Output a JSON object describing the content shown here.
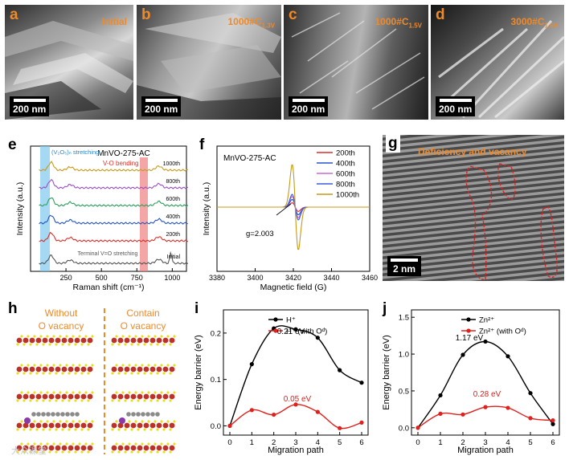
{
  "sem_panels": [
    {
      "letter": "a",
      "condition": "Initial",
      "scale_bar": "200 nm"
    },
    {
      "letter": "b",
      "condition": "1000#C",
      "condition_sub": "1.3V",
      "scale_bar": "200 nm"
    },
    {
      "letter": "c",
      "condition": "1000#C",
      "condition_sub": "1.5V",
      "scale_bar": "200 nm"
    },
    {
      "letter": "d",
      "condition": "3000#C",
      "condition_sub": "1.6V",
      "scale_bar": "200 nm"
    }
  ],
  "panel_e": {
    "letter": "e",
    "title": "MnVO-275-AC",
    "xlabel": "Raman shift (cm⁻¹)",
    "ylabel": "Intensity (a.u.)",
    "band1_label": "(V₂O₅)ₙ stretching",
    "band2_label": "V-O bending",
    "bottom_label": "Terminal V=O stretching",
    "xticks": [
      "250",
      "500",
      "750",
      "1000"
    ],
    "color_band1": "#7ec8ee",
    "color_band2": "#f08080"
  },
  "panel_f": {
    "letter": "f",
    "title": "MnVO-275-AC",
    "xlabel": "Magnetic field (G)",
    "ylabel": "Intensity (a.u.)",
    "annotation": "g=2.003",
    "xticks": [
      "3380",
      "3400",
      "3420",
      "3440",
      "3460"
    ]
  },
  "panel_g": {
    "letter": "g",
    "title": "Deficiency and vacancy",
    "scale_bar": "2 nm"
  },
  "panel_h": {
    "letter": "h",
    "left_title": "Without O vacancy",
    "right_title": "Contain O vacancy",
    "left_line1": "Without",
    "left_line2": "O vacancy",
    "right_line1": "Contain",
    "right_line2": "O vacancy"
  },
  "chart_data": [
    {
      "type": "line",
      "panel": "e",
      "title": "MnVO-275-AC",
      "xlabel": "Raman shift (cm⁻¹)",
      "ylabel": "Intensity (a.u.)",
      "xlim": [
        0,
        1100
      ],
      "series": [
        {
          "name": "Initial",
          "color": "#555555"
        },
        {
          "name": "200th",
          "color": "#d9302a"
        },
        {
          "name": "400th",
          "color": "#2553c8"
        },
        {
          "name": "600th",
          "color": "#2aa05a"
        },
        {
          "name": "800th",
          "color": "#9b4fc8"
        },
        {
          "name": "1000th",
          "color": "#c79a1a"
        }
      ],
      "annotations": [
        "(V2O5)n stretching",
        "V-O bending",
        "Terminal V=O stretching"
      ]
    },
    {
      "type": "line",
      "panel": "f",
      "title": "MnVO-275-AC",
      "xlabel": "Magnetic field (G)",
      "ylabel": "Intensity (a.u.)",
      "xlim": [
        3380,
        3460
      ],
      "series": [
        {
          "name": "200th",
          "color": "#d9302a",
          "amp": 0.1
        },
        {
          "name": "400th",
          "color": "#2553c8",
          "amp": 0.18
        },
        {
          "name": "600th",
          "color": "#c86ad0",
          "amp": 0.25
        },
        {
          "name": "800th",
          "color": "#3c5cd8",
          "amp": 0.3
        },
        {
          "name": "1000th",
          "color": "#c79a1a",
          "amp": 1.0
        }
      ],
      "annotations": [
        "g=2.003"
      ]
    },
    {
      "type": "line",
      "panel": "i",
      "xlabel": "Migration path",
      "ylabel": "Energy barrier (eV)",
      "x": [
        0,
        1,
        2,
        3,
        4,
        5,
        6
      ],
      "ylim": [
        -0.02,
        0.25
      ],
      "yticks": [
        0.0,
        0.1,
        0.2
      ],
      "series": [
        {
          "name": "H⁺",
          "color": "#000000",
          "values": [
            0.0,
            0.133,
            0.21,
            0.208,
            0.19,
            0.12,
            0.093
          ]
        },
        {
          "name": "H⁺ (with Oᵈ)",
          "color": "#e0201c",
          "values": [
            0.0,
            0.034,
            0.024,
            0.046,
            0.03,
            -0.005,
            0.007
          ]
        }
      ],
      "labels": [
        "0.21 eV",
        "0.05 eV"
      ]
    },
    {
      "type": "line",
      "panel": "j",
      "xlabel": "Migration path",
      "ylabel": "Energy barrier (eV)",
      "x": [
        0,
        1,
        2,
        3,
        4,
        5,
        6
      ],
      "ylim": [
        -0.1,
        1.6
      ],
      "yticks": [
        0.0,
        0.5,
        1.0,
        1.5
      ],
      "series": [
        {
          "name": "Zn²⁺",
          "color": "#000000",
          "values": [
            0.0,
            0.44,
            0.99,
            1.17,
            0.97,
            0.47,
            0.05
          ]
        },
        {
          "name": "Zn²⁺ (with Oᵈ)",
          "color": "#e0201c",
          "values": [
            0.0,
            0.19,
            0.18,
            0.28,
            0.27,
            0.13,
            0.1
          ]
        }
      ],
      "labels": [
        "1.17 eV",
        "0.28 eV"
      ]
    }
  ],
  "watermark": "大众课堂"
}
